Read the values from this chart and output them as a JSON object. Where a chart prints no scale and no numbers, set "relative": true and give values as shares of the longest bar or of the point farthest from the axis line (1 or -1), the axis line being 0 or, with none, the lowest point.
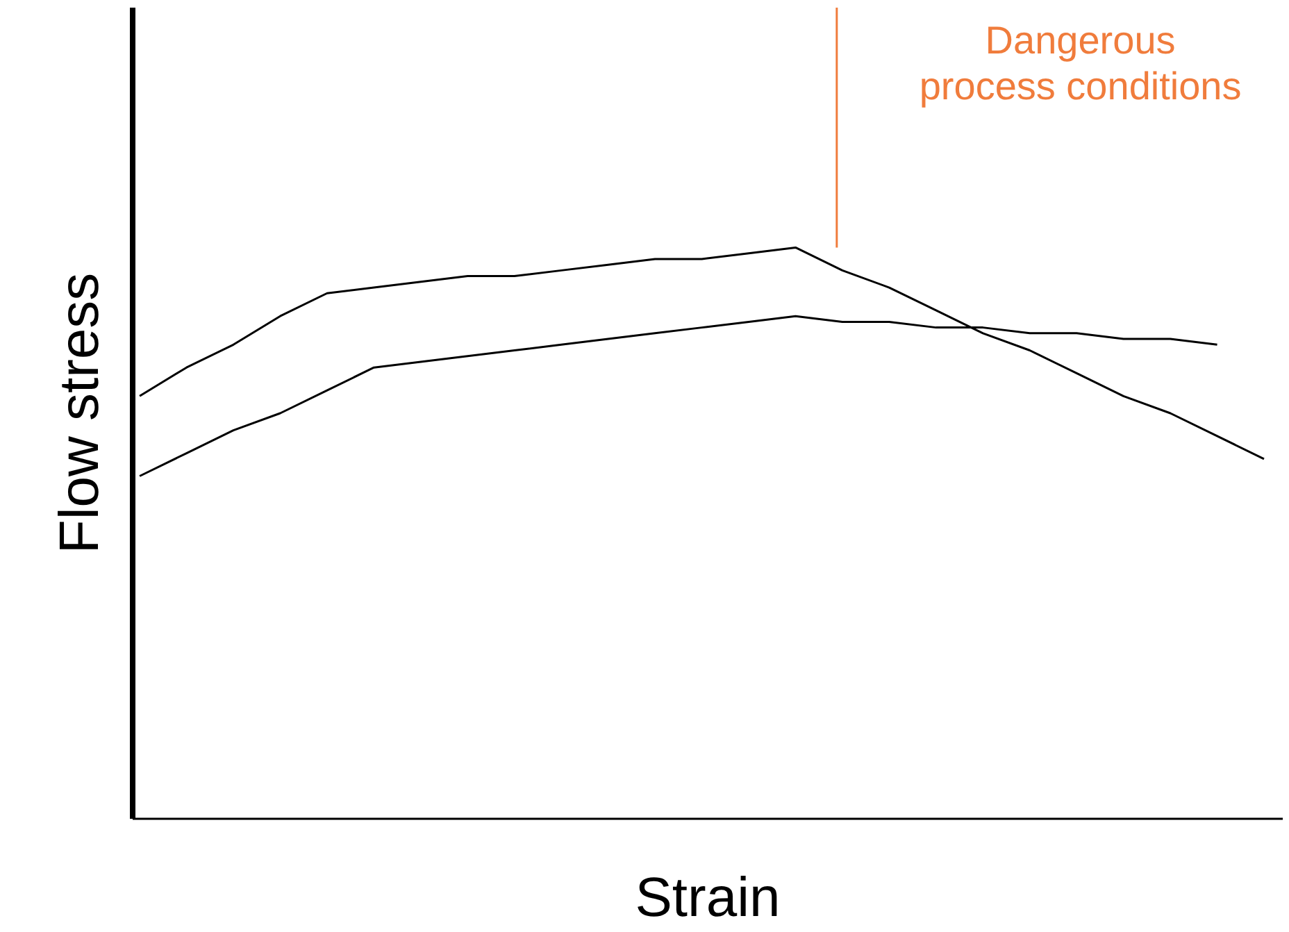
{
  "chart_data": {
    "type": "line",
    "relative": true,
    "xlabel": "Strain",
    "ylabel": "Flow stress",
    "categories": [
      null,
      null,
      null,
      null,
      null,
      null,
      null,
      null,
      null,
      null,
      null,
      null,
      null,
      null,
      null,
      null,
      null,
      null,
      null,
      null,
      null,
      null,
      null,
      null,
      null
    ],
    "series": [
      {
        "color": "#000000",
        "values": [
          0.74,
          0.79,
          0.83,
          0.88,
          0.92,
          0.93,
          0.94,
          0.95,
          0.95,
          0.96,
          0.97,
          0.98,
          0.98,
          0.99,
          1.0,
          0.96,
          0.93,
          0.89,
          0.85,
          0.82,
          0.78,
          0.74,
          0.71,
          0.67,
          0.63
        ]
      },
      {
        "color": "#000000",
        "values": [
          0.6,
          0.64,
          0.68,
          0.71,
          0.75,
          0.79,
          0.8,
          0.81,
          0.82,
          0.83,
          0.84,
          0.85,
          0.86,
          0.87,
          0.88,
          0.87,
          0.87,
          0.86,
          0.86,
          0.85,
          0.85,
          0.84,
          0.84,
          0.83,
          null
        ]
      }
    ],
    "annotations": [
      "Dangerous\nprocess conditions"
    ],
    "grid": false,
    "marker": "none",
    "line_style": "solid"
  }
}
